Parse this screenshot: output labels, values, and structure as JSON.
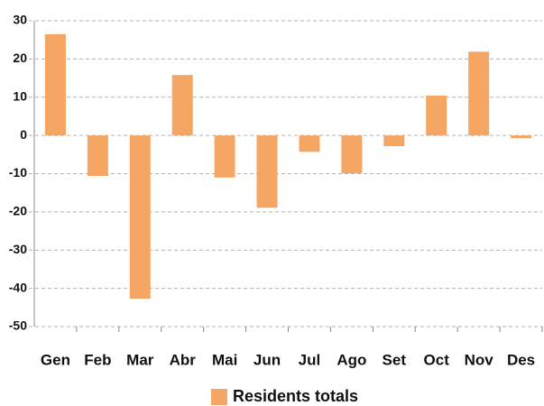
{
  "chart_data": {
    "type": "bar",
    "categories": [
      "Gen",
      "Feb",
      "Mar",
      "Abr",
      "Mai",
      "Jun",
      "Jul",
      "Ago",
      "Set",
      "Oct",
      "Nov",
      "Des"
    ],
    "series": [
      {
        "name": "Residents totals",
        "color": "#f5a662",
        "values": [
          26.5,
          -10.6,
          -42.7,
          15.8,
          -11,
          -18.9,
          -4.3,
          -9.9,
          -2.8,
          10.4,
          21.9,
          -0.7
        ]
      }
    ],
    "ylim": [
      -50,
      30
    ],
    "yticks": [
      -50,
      -40,
      -30,
      -20,
      -10,
      0,
      10,
      20,
      30
    ],
    "grid": true,
    "legend": "bottom"
  }
}
